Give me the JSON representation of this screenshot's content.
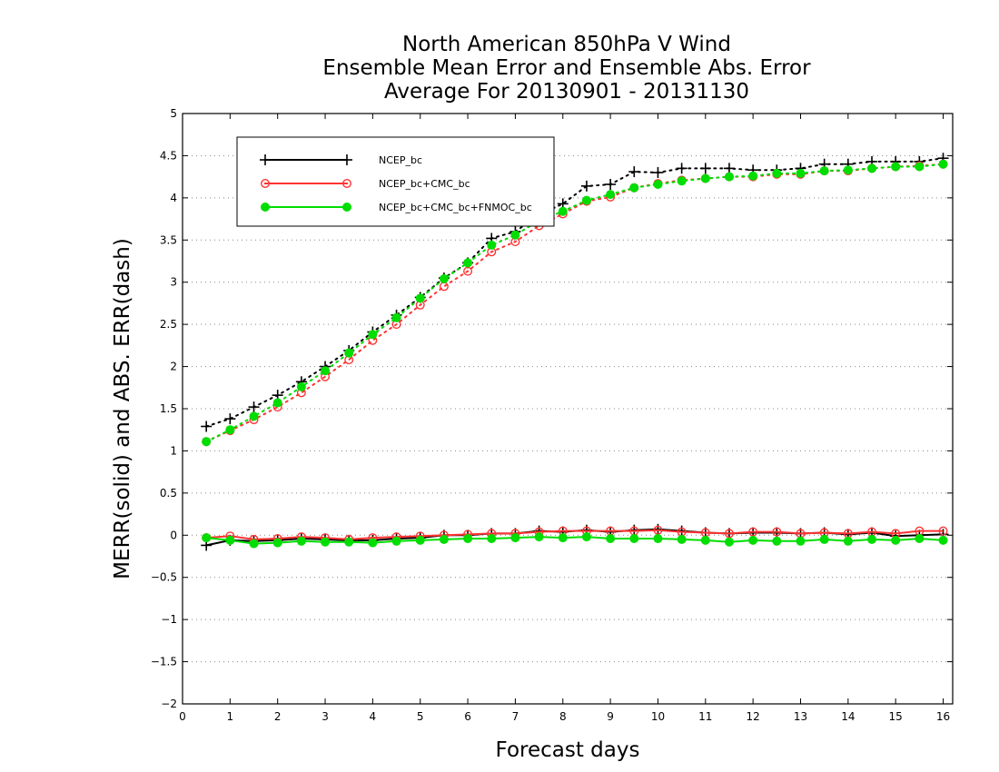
{
  "chart_data": {
    "type": "line",
    "title": [
      "North American 850hPa V Wind",
      "Ensemble Mean Error and Ensemble Abs. Error",
      "Average For 20130901 - 20131130"
    ],
    "xlabel": "Forecast days",
    "ylabel": "MERR(solid) and ABS. ERR(dash)",
    "xlim": [
      0,
      16.2
    ],
    "ylim": [
      -2,
      5
    ],
    "xticks": [
      "0",
      "1",
      "2",
      "3",
      "4",
      "5",
      "6",
      "7",
      "8",
      "9",
      "10",
      "11",
      "12",
      "13",
      "14",
      "15",
      "16"
    ],
    "yticks": [
      "−2",
      "−1.5",
      "−1",
      "−0.5",
      "0",
      "0.5",
      "1",
      "1.5",
      "2",
      "2.5",
      "3",
      "3.5",
      "4",
      "4.5",
      "5"
    ],
    "grid": "horizontal dotted",
    "legend_position": "top-left",
    "x": [
      0.5,
      1,
      1.5,
      2,
      2.5,
      3,
      3.5,
      4,
      4.5,
      5,
      5.5,
      6,
      6.5,
      7,
      7.5,
      8,
      8.5,
      9,
      9.5,
      10,
      10.5,
      11,
      11.5,
      12,
      12.5,
      13,
      13.5,
      14,
      14.5,
      15,
      15.5,
      16
    ],
    "series": [
      {
        "name": "NCEP_bc",
        "color": "#000000",
        "marker": "plus",
        "abs_err": [
          1.29,
          1.38,
          1.52,
          1.66,
          1.82,
          2.0,
          2.19,
          2.41,
          2.61,
          2.82,
          3.05,
          3.23,
          3.52,
          3.6,
          3.8,
          3.93,
          4.14,
          4.16,
          4.31,
          4.3,
          4.35,
          4.35,
          4.35,
          4.33,
          4.33,
          4.35,
          4.4,
          4.4,
          4.43,
          4.43,
          4.43,
          4.47
        ],
        "mean_err": [
          -0.12,
          -0.06,
          -0.07,
          -0.06,
          -0.04,
          -0.05,
          -0.06,
          -0.06,
          -0.04,
          -0.03,
          0.0,
          0.0,
          0.02,
          0.02,
          0.05,
          0.04,
          0.06,
          0.04,
          0.06,
          0.07,
          0.05,
          0.03,
          0.02,
          0.03,
          0.03,
          0.02,
          0.03,
          0.01,
          0.03,
          -0.01,
          0.0,
          0.01
        ]
      },
      {
        "name": "NCEP_bc+CMC_bc",
        "color": "#ff3333",
        "marker": "open-circle",
        "abs_err": [
          1.11,
          1.24,
          1.37,
          1.52,
          1.69,
          1.88,
          2.08,
          2.31,
          2.5,
          2.73,
          2.95,
          3.13,
          3.36,
          3.48,
          3.67,
          3.81,
          3.96,
          4.01,
          4.12,
          4.17,
          4.21,
          4.23,
          4.25,
          4.25,
          4.28,
          4.28,
          4.32,
          4.32,
          4.35,
          4.37,
          4.38,
          4.4
        ],
        "mean_err": [
          -0.03,
          -0.01,
          -0.05,
          -0.04,
          -0.02,
          -0.03,
          -0.05,
          -0.03,
          -0.02,
          -0.01,
          0.0,
          0.01,
          0.02,
          0.02,
          0.04,
          0.05,
          0.05,
          0.05,
          0.05,
          0.06,
          0.04,
          0.03,
          0.02,
          0.04,
          0.04,
          0.02,
          0.03,
          0.02,
          0.04,
          0.02,
          0.05,
          0.05
        ]
      },
      {
        "name": "NCEP_bc+CMC_bc+FNMOC_bc",
        "color": "#00dd00",
        "marker": "filled-circle",
        "abs_err": [
          1.11,
          1.25,
          1.41,
          1.57,
          1.76,
          1.95,
          2.16,
          2.38,
          2.58,
          2.81,
          3.04,
          3.23,
          3.44,
          3.56,
          3.73,
          3.84,
          3.97,
          4.04,
          4.12,
          4.16,
          4.2,
          4.23,
          4.25,
          4.26,
          4.29,
          4.29,
          4.32,
          4.33,
          4.35,
          4.37,
          4.37,
          4.4
        ],
        "mean_err": [
          -0.03,
          -0.06,
          -0.1,
          -0.09,
          -0.07,
          -0.08,
          -0.08,
          -0.09,
          -0.07,
          -0.06,
          -0.05,
          -0.04,
          -0.04,
          -0.03,
          -0.02,
          -0.03,
          -0.02,
          -0.04,
          -0.04,
          -0.04,
          -0.05,
          -0.06,
          -0.08,
          -0.06,
          -0.07,
          -0.07,
          -0.05,
          -0.07,
          -0.05,
          -0.06,
          -0.04,
          -0.06
        ]
      }
    ]
  }
}
